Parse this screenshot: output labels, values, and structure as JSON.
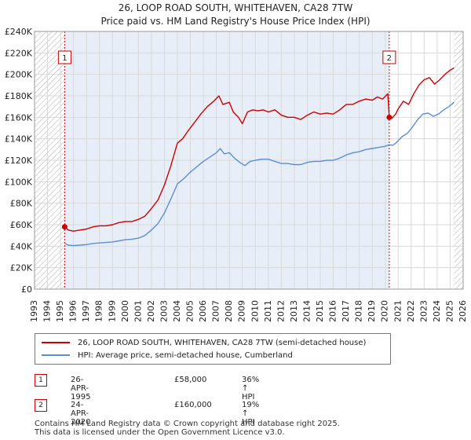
{
  "title_line1": "26, LOOP ROAD SOUTH, WHITEHAVEN, CA28 7TW",
  "title_line2": "Price paid vs. HM Land Registry's House Price Index (HPI)",
  "colors": {
    "property": "#cc0000",
    "hpi": "#5b8fcf",
    "shade": "#e8eef8"
  },
  "chart_data": {
    "type": "line",
    "title": "Price paid vs. HM Land Registry's House Price Index (HPI)",
    "xlabel": "",
    "ylabel": "",
    "xlim": [
      1993,
      2026
    ],
    "ylim": [
      0,
      240000
    ],
    "x_ticks": [
      "1993",
      "1994",
      "1995",
      "1996",
      "1997",
      "1998",
      "1999",
      "2000",
      "2001",
      "2002",
      "2003",
      "2004",
      "2005",
      "2006",
      "2007",
      "2008",
      "2009",
      "2010",
      "2011",
      "2012",
      "2013",
      "2014",
      "2015",
      "2016",
      "2017",
      "2018",
      "2019",
      "2020",
      "2021",
      "2022",
      "2023",
      "2024",
      "2025",
      "2026"
    ],
    "y_ticks": [
      {
        "value": 0,
        "label": "£0"
      },
      {
        "value": 20000,
        "label": "£20K"
      },
      {
        "value": 40000,
        "label": "£40K"
      },
      {
        "value": 60000,
        "label": "£60K"
      },
      {
        "value": 80000,
        "label": "£80K"
      },
      {
        "value": 100000,
        "label": "£100K"
      },
      {
        "value": 120000,
        "label": "£120K"
      },
      {
        "value": 140000,
        "label": "£140K"
      },
      {
        "value": 160000,
        "label": "£160K"
      },
      {
        "value": 180000,
        "label": "£180K"
      },
      {
        "value": 200000,
        "label": "£200K"
      },
      {
        "value": 220000,
        "label": "£220K"
      },
      {
        "value": 240000,
        "label": "£240K"
      }
    ],
    "hatched_ranges": [
      [
        1993,
        1995.32
      ],
      [
        2025.3,
        2026
      ]
    ],
    "shaded_ranges": [
      [
        1995.32,
        2020.31
      ]
    ],
    "series": [
      {
        "name": "26, LOOP ROAD SOUTH, WHITEHAVEN, CA28 7TW (semi-detached house)",
        "color": "#cc0000",
        "points": [
          [
            1995.32,
            58000
          ],
          [
            1995.6,
            55000
          ],
          [
            1996,
            54000
          ],
          [
            1996.5,
            55000
          ],
          [
            1997,
            56000
          ],
          [
            1997.5,
            58000
          ],
          [
            1998,
            59000
          ],
          [
            1998.5,
            59000
          ],
          [
            1999,
            60000
          ],
          [
            1999.5,
            62000
          ],
          [
            2000,
            63000
          ],
          [
            2000.5,
            63000
          ],
          [
            2001,
            65000
          ],
          [
            2001.5,
            68000
          ],
          [
            2002,
            75000
          ],
          [
            2002.5,
            83000
          ],
          [
            2003,
            97000
          ],
          [
            2003.5,
            115000
          ],
          [
            2004,
            136000
          ],
          [
            2004.4,
            140000
          ],
          [
            2004.8,
            147000
          ],
          [
            2005.3,
            155000
          ],
          [
            2005.8,
            163000
          ],
          [
            2006.3,
            170000
          ],
          [
            2006.8,
            175000
          ],
          [
            2007.2,
            180000
          ],
          [
            2007.5,
            172000
          ],
          [
            2008,
            174000
          ],
          [
            2008.3,
            165000
          ],
          [
            2008.7,
            160000
          ],
          [
            2009,
            154000
          ],
          [
            2009.4,
            165000
          ],
          [
            2009.8,
            167000
          ],
          [
            2010.2,
            166000
          ],
          [
            2010.6,
            167000
          ],
          [
            2011,
            165000
          ],
          [
            2011.5,
            167000
          ],
          [
            2012,
            162000
          ],
          [
            2012.5,
            160000
          ],
          [
            2013,
            160000
          ],
          [
            2013.5,
            158000
          ],
          [
            2014,
            162000
          ],
          [
            2014.5,
            165000
          ],
          [
            2015,
            163000
          ],
          [
            2015.5,
            164000
          ],
          [
            2016,
            163000
          ],
          [
            2016.5,
            167000
          ],
          [
            2017,
            172000
          ],
          [
            2017.5,
            172000
          ],
          [
            2018,
            175000
          ],
          [
            2018.5,
            177000
          ],
          [
            2019,
            176000
          ],
          [
            2019.4,
            179000
          ],
          [
            2019.8,
            177000
          ],
          [
            2020.2,
            182000
          ],
          [
            2020.31,
            160000
          ],
          [
            2020.5,
            159000
          ],
          [
            2020.8,
            163000
          ],
          [
            2021,
            168000
          ],
          [
            2021.4,
            175000
          ],
          [
            2021.8,
            172000
          ],
          [
            2022.2,
            182000
          ],
          [
            2022.6,
            190000
          ],
          [
            2023,
            195000
          ],
          [
            2023.4,
            197000
          ],
          [
            2023.8,
            191000
          ],
          [
            2024.2,
            195000
          ],
          [
            2024.6,
            200000
          ],
          [
            2025,
            204000
          ],
          [
            2025.3,
            206000
          ]
        ]
      },
      {
        "name": "HPI: Average price, semi-detached house, Cumberland",
        "color": "#5b8fcf",
        "points": [
          [
            1995.32,
            42500
          ],
          [
            1995.6,
            41000
          ],
          [
            1996,
            40500
          ],
          [
            1996.5,
            41000
          ],
          [
            1997,
            41500
          ],
          [
            1997.5,
            42500
          ],
          [
            1998,
            43000
          ],
          [
            1998.5,
            43500
          ],
          [
            1999,
            44000
          ],
          [
            1999.5,
            45000
          ],
          [
            2000,
            46000
          ],
          [
            2000.5,
            46500
          ],
          [
            2001,
            47500
          ],
          [
            2001.5,
            50000
          ],
          [
            2002,
            55000
          ],
          [
            2002.5,
            61000
          ],
          [
            2003,
            71000
          ],
          [
            2003.5,
            84000
          ],
          [
            2004,
            98000
          ],
          [
            2004.5,
            103000
          ],
          [
            2005,
            109000
          ],
          [
            2005.5,
            114000
          ],
          [
            2006,
            119000
          ],
          [
            2006.5,
            123000
          ],
          [
            2007,
            127000
          ],
          [
            2007.3,
            131000
          ],
          [
            2007.6,
            126000
          ],
          [
            2008,
            127000
          ],
          [
            2008.4,
            122000
          ],
          [
            2008.8,
            118000
          ],
          [
            2009.2,
            115000
          ],
          [
            2009.6,
            119000
          ],
          [
            2010,
            120000
          ],
          [
            2010.5,
            121000
          ],
          [
            2011,
            121000
          ],
          [
            2011.5,
            119000
          ],
          [
            2012,
            117000
          ],
          [
            2012.5,
            117000
          ],
          [
            2013,
            116000
          ],
          [
            2013.5,
            116000
          ],
          [
            2014,
            118000
          ],
          [
            2014.5,
            119000
          ],
          [
            2015,
            119000
          ],
          [
            2015.5,
            120000
          ],
          [
            2016,
            120000
          ],
          [
            2016.5,
            122000
          ],
          [
            2017,
            125000
          ],
          [
            2017.5,
            127000
          ],
          [
            2018,
            128000
          ],
          [
            2018.5,
            130000
          ],
          [
            2019,
            131000
          ],
          [
            2019.5,
            132000
          ],
          [
            2020,
            133000
          ],
          [
            2020.31,
            134500
          ],
          [
            2020.6,
            134000
          ],
          [
            2020.9,
            137000
          ],
          [
            2021.3,
            142000
          ],
          [
            2021.7,
            145000
          ],
          [
            2022.1,
            151000
          ],
          [
            2022.5,
            158000
          ],
          [
            2022.9,
            163000
          ],
          [
            2023.3,
            164000
          ],
          [
            2023.7,
            161000
          ],
          [
            2024.1,
            163000
          ],
          [
            2024.5,
            167000
          ],
          [
            2024.9,
            170000
          ],
          [
            2025.3,
            174000
          ]
        ]
      }
    ],
    "markers": [
      {
        "label": "1",
        "x": 1995.32,
        "y": 58000
      },
      {
        "label": "2",
        "x": 2020.31,
        "y": 160000
      }
    ]
  },
  "legend": [
    {
      "label": "26, LOOP ROAD SOUTH, WHITEHAVEN, CA28 7TW (semi-detached house)"
    },
    {
      "label": "HPI: Average price, semi-detached house, Cumberland"
    }
  ],
  "transactions": [
    {
      "num": "1",
      "date": "26-APR-1995",
      "price": "£58,000",
      "hpi": "36% ↑ HPI"
    },
    {
      "num": "2",
      "date": "24-APR-2020",
      "price": "£160,000",
      "hpi": "19% ↑ HPI"
    }
  ],
  "footer": {
    "line1": "Contains HM Land Registry data © Crown copyright and database right 2025.",
    "line2": "This data is licensed under the Open Government Licence v3.0."
  }
}
